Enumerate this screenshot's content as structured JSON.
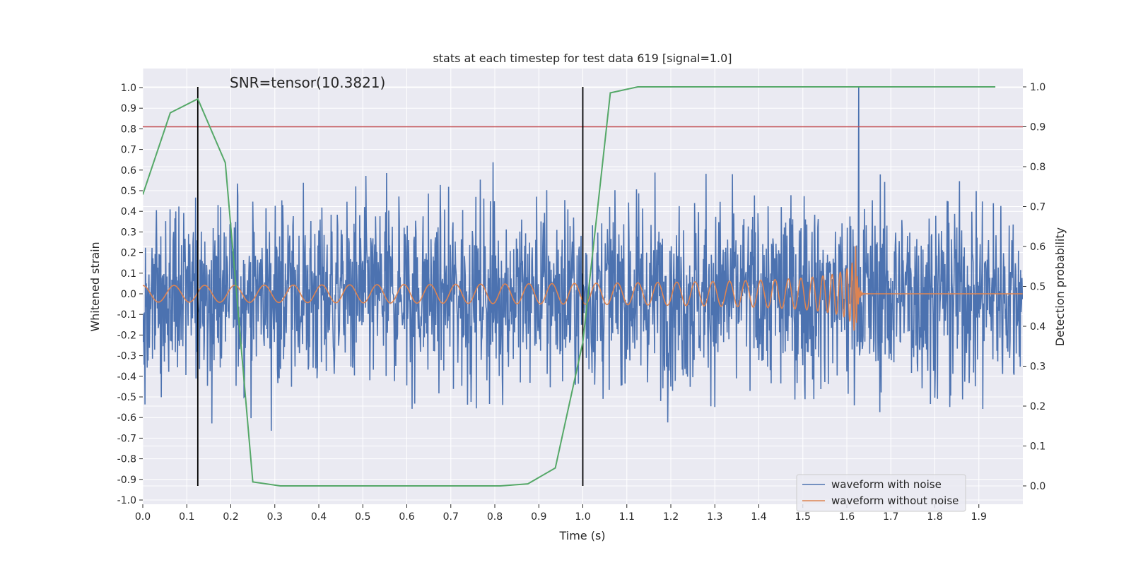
{
  "chart_data": {
    "type": "line",
    "title": "stats at each timestep for test data 619 [signal=1.0]",
    "annotation": "SNR=tensor(10.3821)",
    "xlabel": "Time (s)",
    "ylabel_left": "Whitened strain",
    "ylabel_right": "Detection probability",
    "xlim": [
      0.0,
      2.0
    ],
    "ylim_left": [
      -1.02,
      1.09
    ],
    "ylim_right": [
      -0.05,
      1.035
    ],
    "xticks": [
      "0.0",
      "0.1",
      "0.2",
      "0.3",
      "0.4",
      "0.5",
      "0.6",
      "0.7",
      "0.8",
      "0.9",
      "1.0",
      "1.1",
      "1.2",
      "1.3",
      "1.4",
      "1.5",
      "1.6",
      "1.7",
      "1.8",
      "1.9"
    ],
    "yticks_left": [
      "-1.0",
      "-0.9",
      "-0.8",
      "-0.7",
      "-0.6",
      "-0.5",
      "-0.4",
      "-0.3",
      "-0.2",
      "-0.1",
      "0.0",
      "0.1",
      "0.2",
      "0.3",
      "0.4",
      "0.5",
      "0.6",
      "0.7",
      "0.8",
      "0.9",
      "1.0"
    ],
    "yticks_right": [
      "0.0",
      "0.1",
      "0.2",
      "0.3",
      "0.4",
      "0.5",
      "0.6",
      "0.7",
      "0.8",
      "0.9",
      "1.0"
    ],
    "threshold": 0.9,
    "vlines_time": [
      0.125,
      1.0
    ],
    "merger_time": 1.62,
    "series": [
      {
        "name": "waveform with noise",
        "color": "#4c72b0",
        "axis": "left",
        "noise_std": 0.24,
        "peak_value": 1.0
      },
      {
        "name": "waveform without noise",
        "color": "#dd8452",
        "axis": "left",
        "amplitude_start": 0.04,
        "amplitude_peak": 0.33
      },
      {
        "name": "Detection probability",
        "color": "#55a868",
        "axis": "right",
        "x": [
          0.0,
          0.0625,
          0.125,
          0.1875,
          0.25,
          0.3125,
          0.375,
          0.4375,
          0.5,
          0.5625,
          0.625,
          0.6875,
          0.75,
          0.8125,
          0.875,
          0.9375,
          1.0,
          1.0625,
          1.125,
          1.1875,
          1.25,
          1.3125,
          1.375,
          1.4375,
          1.5,
          1.5625,
          1.625,
          1.6875,
          1.75,
          1.8125,
          1.875,
          1.9375
        ],
        "y": [
          0.73,
          0.935,
          0.97,
          0.81,
          0.01,
          0.0,
          0.0,
          0.0,
          0.0,
          0.0,
          0.0,
          0.0,
          0.0,
          0.0,
          0.005,
          0.045,
          0.36,
          0.985,
          1.0,
          1.0,
          1.0,
          1.0,
          1.0,
          1.0,
          1.0,
          1.0,
          1.0,
          1.0,
          1.0,
          1.0,
          1.0,
          1.0
        ]
      }
    ],
    "legend_position": "bottom-right",
    "colors": {
      "threshold": "#c44e52",
      "vline": "#000000",
      "plot_bg": "#eaeaf2",
      "grid": "#ffffff"
    }
  }
}
